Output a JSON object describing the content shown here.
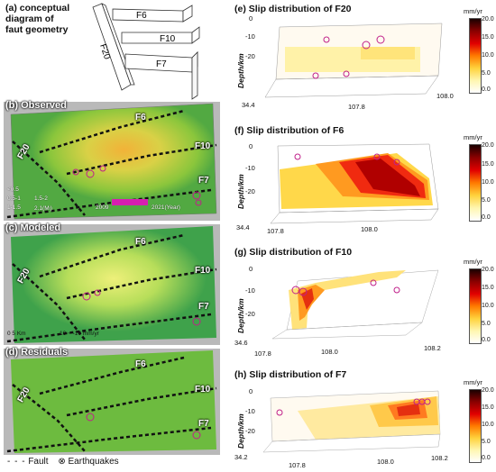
{
  "panel_a": {
    "title_line1": "(a) conceptual",
    "title_line2": "diagram of",
    "title_line3": "faut geometry",
    "faults": [
      "F20",
      "F6",
      "F10",
      "F7"
    ]
  },
  "panel_b": {
    "label": "(b) Observed",
    "faults": [
      "F6",
      "F20",
      "F10",
      "F7"
    ],
    "eq_legend": [
      "<0.5",
      "0.5-1",
      "1-1.5",
      "1.5-2",
      "2.1(Mₗ)"
    ],
    "time_start": "2009",
    "time_end": "2021(Year)"
  },
  "panel_c": {
    "label": "(c) Modeled",
    "faults": [
      "F6",
      "F20",
      "F10",
      "F7"
    ],
    "scale": "0    5 Km",
    "vel_scale": "10 ~ -10 mm/yr"
  },
  "panel_d": {
    "label": "(d) Residuals",
    "faults": [
      "F6",
      "F20",
      "F10",
      "F7"
    ]
  },
  "legend": {
    "fault": "Fault",
    "earthquakes": "Earthquakes"
  },
  "panel_e": {
    "title": "(e) Slip distribution of F20",
    "ylabel": "Depth/km",
    "yticks": [
      "0",
      "-10",
      "-20"
    ],
    "xticks": [
      "34.4",
      "107.8",
      "108.0"
    ]
  },
  "panel_f": {
    "title": "(f) Slip distribution of F6",
    "ylabel": "Depth/km",
    "yticks": [
      "0",
      "-10",
      "-20"
    ],
    "xticks": [
      "34.4",
      "107.8",
      "108.0"
    ]
  },
  "panel_g": {
    "title": "(g) Slip distribution of F10",
    "ylabel": "Depth/km",
    "yticks": [
      "0",
      "-10",
      "-20"
    ],
    "xticks": [
      "34.6",
      "107.8",
      "108.0",
      "108.2"
    ]
  },
  "panel_h": {
    "title": "(h) Slip distribution of F7",
    "ylabel": "Depth/km",
    "yticks": [
      "0",
      "-10",
      "-20"
    ],
    "xticks": [
      "34.2",
      "107.8",
      "108.0",
      "108.2"
    ]
  },
  "colorbar": {
    "unit": "mm/yr",
    "ticks": [
      "20.0",
      "15.0",
      "10.0",
      "5.0",
      "0.0"
    ]
  }
}
